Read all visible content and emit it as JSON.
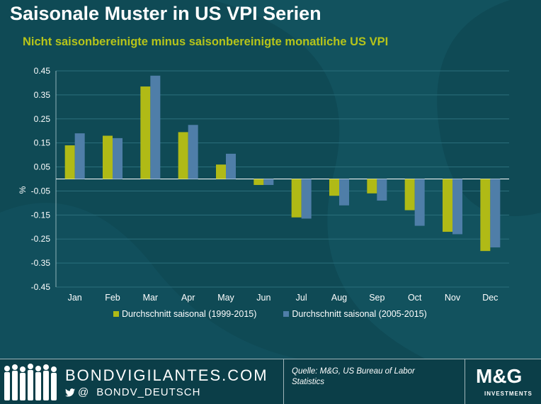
{
  "title": "Saisonale Muster in US VPI Serien",
  "subtitle": "Nicht saisonbereinigte minus saisonbereinigte monatliche US VPI",
  "chart_data": {
    "type": "bar",
    "categories": [
      "Jan",
      "Feb",
      "Mar",
      "Apr",
      "May",
      "Jun",
      "Jul",
      "Aug",
      "Sep",
      "Oct",
      "Nov",
      "Dec"
    ],
    "series": [
      {
        "name": "Durchschnitt saisonal (1999-2015)",
        "color": "#b0ba16",
        "values": [
          0.14,
          0.18,
          0.385,
          0.195,
          0.06,
          -0.025,
          -0.16,
          -0.07,
          -0.06,
          -0.13,
          -0.22,
          -0.3
        ]
      },
      {
        "name": "Durchschnitt saisonal (2005-2015)",
        "color": "#4f7ea8",
        "values": [
          0.19,
          0.17,
          0.43,
          0.225,
          0.105,
          -0.025,
          -0.165,
          -0.11,
          -0.09,
          -0.195,
          -0.23,
          -0.285
        ]
      }
    ],
    "ylabel": "%",
    "ylim": [
      -0.45,
      0.45
    ],
    "yticks": [
      "0.45",
      "0.35",
      "0.25",
      "0.15",
      "0.05",
      "-0.05",
      "-0.15",
      "-0.25",
      "-0.35",
      "-0.45"
    ]
  },
  "footer": {
    "brand": "BONDVIGILANTES.COM",
    "handle_prefix": "@",
    "handle": "BONDV_DEUTSCH",
    "source": "Quelle: M&G, US Bureau of Labor Statistics",
    "logo": "M&G",
    "logo_sub": "INVESTMENTS"
  },
  "colors": {
    "background": "#0f4a55",
    "accent": "#b6c41a",
    "footer_bg": "#0b3e48"
  }
}
